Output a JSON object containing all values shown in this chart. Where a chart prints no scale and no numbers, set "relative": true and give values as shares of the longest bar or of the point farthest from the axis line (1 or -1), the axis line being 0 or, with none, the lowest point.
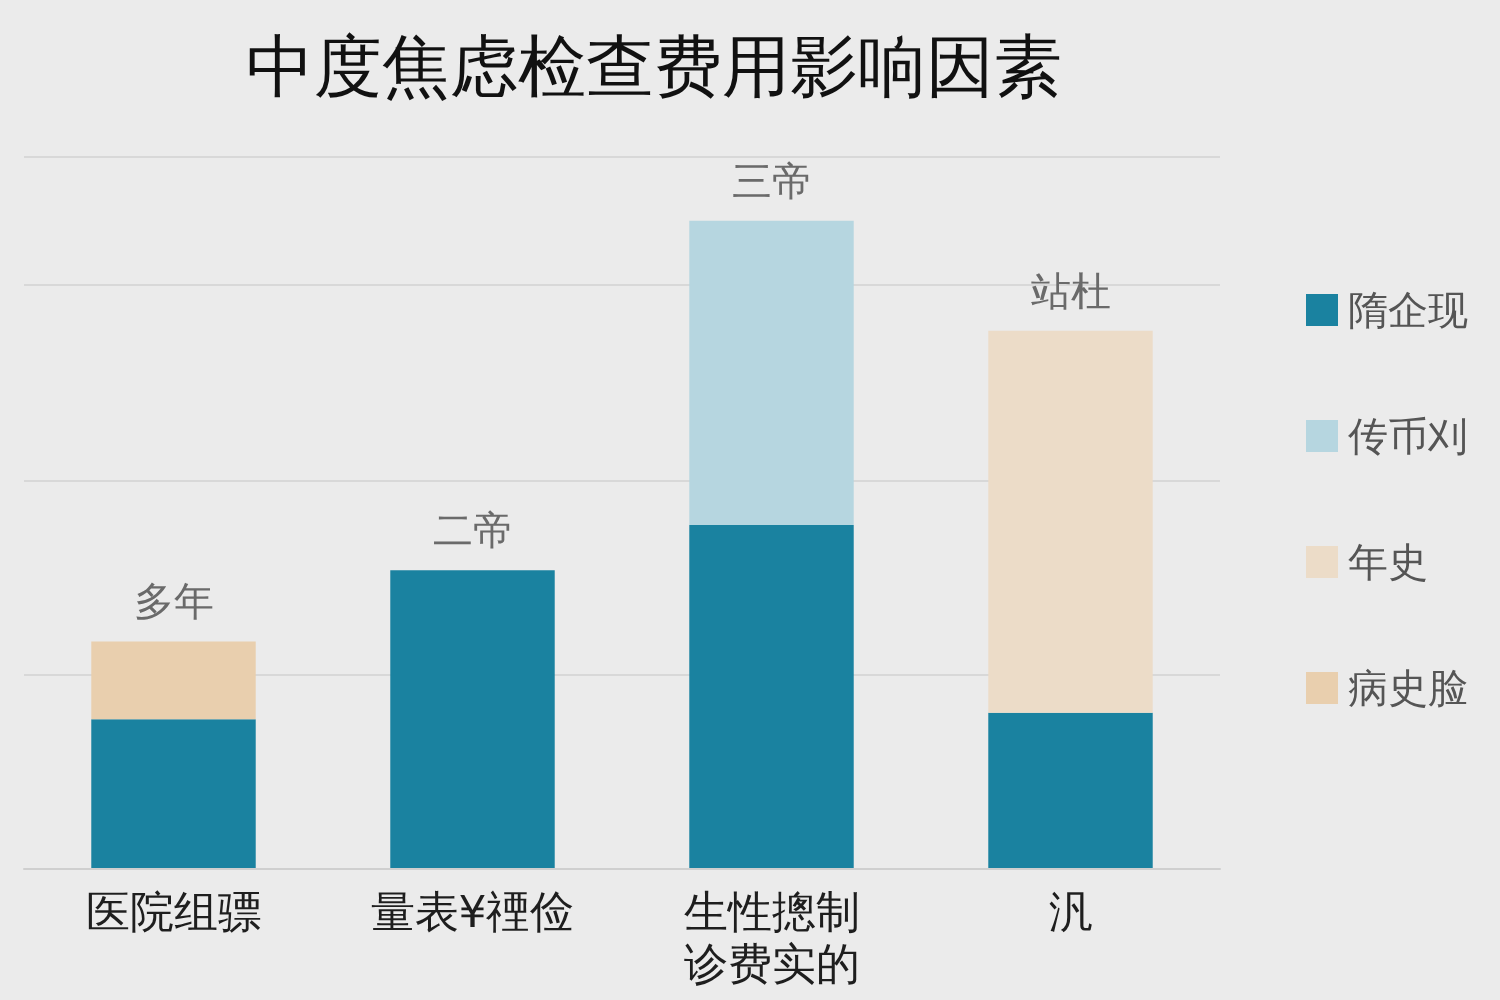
{
  "chart_data": {
    "type": "bar",
    "title": "中度焦虑检查费用影响因素",
    "categories": [
      "医院组骠",
      "量表¥禋俭",
      "生性摠制诊费实的",
      "汎"
    ],
    "series": [
      {
        "name": "隋企现",
        "color": "#1a82a0",
        "values": [
          0.23,
          0.46,
          0.53,
          0.24
        ]
      },
      {
        "name": "传币刈",
        "color": "#b6d6e0",
        "values": [
          null,
          null,
          0.47,
          null
        ]
      },
      {
        "name": "年史",
        "color": "#ecdcc8",
        "values": [
          null,
          null,
          null,
          0.59
        ]
      },
      {
        "name": "病史脸",
        "color": "#e9cfae",
        "values": [
          0.12,
          null,
          null,
          null
        ]
      }
    ],
    "stacked": true,
    "relative": true,
    "totals": [
      "多年",
      "二帝",
      "三帝",
      "站杜"
    ],
    "legend": "right",
    "grid": "y"
  }
}
